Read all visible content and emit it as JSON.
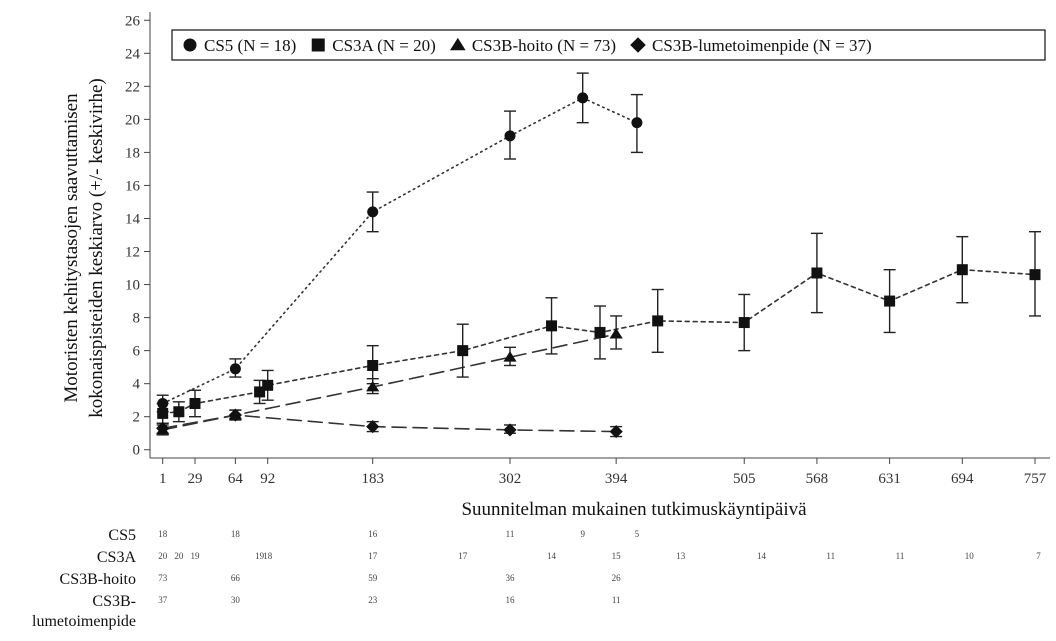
{
  "chart_data": {
    "type": "line",
    "title": "",
    "xlabel": "Suunnitelman mukainen tutkimuskäyntipäivä",
    "ylabel_line1": "Motoristen kehitystasojen saavuttamisen",
    "ylabel_line2": "kokonaispisteiden keskiarvo (+/- keskivirhe)",
    "xlim": [
      -10,
      770
    ],
    "ylim": [
      -0.5,
      26.5
    ],
    "x_ticks": [
      1,
      29,
      64,
      92,
      183,
      302,
      394,
      505,
      568,
      631,
      694,
      757
    ],
    "y_ticks": [
      0,
      2,
      4,
      6,
      8,
      10,
      12,
      14,
      16,
      18,
      20,
      22,
      24,
      26
    ],
    "grid": false,
    "legend_position": "top",
    "series": [
      {
        "name": "CS5 (N = 18)",
        "marker": "circle",
        "line_style": "dotted",
        "points": [
          {
            "x": 1,
            "y": 2.8,
            "lo": 2.3,
            "hi": 3.3
          },
          {
            "x": 64,
            "y": 4.9,
            "lo": 4.4,
            "hi": 5.5
          },
          {
            "x": 183,
            "y": 14.4,
            "lo": 13.2,
            "hi": 15.6
          },
          {
            "x": 302,
            "y": 19.0,
            "lo": 17.6,
            "hi": 20.5
          },
          {
            "x": 365,
            "y": 21.3,
            "lo": 19.8,
            "hi": 22.8
          },
          {
            "x": 412,
            "y": 19.8,
            "lo": 18.0,
            "hi": 21.5
          }
        ]
      },
      {
        "name": "CS3A (N = 20)",
        "marker": "square",
        "line_style": "short-dash",
        "points": [
          {
            "x": 1,
            "y": 2.2,
            "lo": 1.6,
            "hi": 2.8
          },
          {
            "x": 15,
            "y": 2.3,
            "lo": 1.7,
            "hi": 2.9
          },
          {
            "x": 29,
            "y": 2.8,
            "lo": 2.0,
            "hi": 3.6
          },
          {
            "x": 85,
            "y": 3.5,
            "lo": 2.8,
            "hi": 4.2
          },
          {
            "x": 92,
            "y": 3.9,
            "lo": 3.0,
            "hi": 4.8
          },
          {
            "x": 183,
            "y": 5.1,
            "lo": 4.0,
            "hi": 6.3
          },
          {
            "x": 261,
            "y": 6.0,
            "lo": 4.4,
            "hi": 7.6
          },
          {
            "x": 338,
            "y": 7.5,
            "lo": 5.8,
            "hi": 9.2
          },
          {
            "x": 380,
            "y": 7.1,
            "lo": 5.5,
            "hi": 8.7
          },
          {
            "x": 430,
            "y": 7.8,
            "lo": 5.9,
            "hi": 9.7
          },
          {
            "x": 505,
            "y": 7.7,
            "lo": 6.0,
            "hi": 9.4
          },
          {
            "x": 568,
            "y": 10.7,
            "lo": 8.3,
            "hi": 13.1
          },
          {
            "x": 631,
            "y": 9.0,
            "lo": 7.1,
            "hi": 10.9
          },
          {
            "x": 694,
            "y": 10.9,
            "lo": 8.9,
            "hi": 12.9
          },
          {
            "x": 757,
            "y": 10.6,
            "lo": 8.1,
            "hi": 13.2
          }
        ]
      },
      {
        "name": "CS3B-hoito (N = 73)",
        "marker": "triangle",
        "line_style": "long-dash",
        "points": [
          {
            "x": 1,
            "y": 1.2,
            "lo": 0.9,
            "hi": 1.5
          },
          {
            "x": 64,
            "y": 2.1,
            "lo": 1.9,
            "hi": 2.4
          },
          {
            "x": 183,
            "y": 3.8,
            "lo": 3.4,
            "hi": 4.3
          },
          {
            "x": 302,
            "y": 5.6,
            "lo": 5.1,
            "hi": 6.2
          },
          {
            "x": 394,
            "y": 7.0,
            "lo": 6.1,
            "hi": 8.1
          }
        ]
      },
      {
        "name": "CS3B-lumetoimenpide (N = 37)",
        "marker": "diamond",
        "line_style": "long-dash",
        "points": [
          {
            "x": 1,
            "y": 1.3,
            "lo": 1.0,
            "hi": 1.6
          },
          {
            "x": 64,
            "y": 2.1,
            "lo": 1.8,
            "hi": 2.4
          },
          {
            "x": 183,
            "y": 1.4,
            "lo": 1.1,
            "hi": 1.7
          },
          {
            "x": 302,
            "y": 1.2,
            "lo": 1.0,
            "hi": 1.5
          },
          {
            "x": 394,
            "y": 1.1,
            "lo": 0.8,
            "hi": 1.4
          }
        ]
      }
    ],
    "at_risk_table": {
      "rows": [
        {
          "label": "CS5",
          "counts": [
            {
              "x": 1,
              "n": "18"
            },
            {
              "x": 64,
              "n": "18"
            },
            {
              "x": 183,
              "n": "16"
            },
            {
              "x": 302,
              "n": "11"
            },
            {
              "x": 365,
              "n": "9"
            },
            {
              "x": 412,
              "n": "5"
            }
          ]
        },
        {
          "label": "CS3A",
          "counts": [
            {
              "x": 1,
              "n": "20"
            },
            {
              "x": 15,
              "n": "20"
            },
            {
              "x": 29,
              "n": "19"
            },
            {
              "x": 85,
              "n": "19"
            },
            {
              "x": 92,
              "n": "18"
            },
            {
              "x": 183,
              "n": "17"
            },
            {
              "x": 261,
              "n": "17"
            },
            {
              "x": 338,
              "n": "14"
            },
            {
              "x": 394,
              "n": "15"
            },
            {
              "x": 450,
              "n": "13"
            },
            {
              "x": 520,
              "n": "14"
            },
            {
              "x": 580,
              "n": "11"
            },
            {
              "x": 640,
              "n": "11"
            },
            {
              "x": 700,
              "n": "10"
            },
            {
              "x": 760,
              "n": "7"
            }
          ]
        },
        {
          "label": "CS3B-hoito",
          "counts": [
            {
              "x": 1,
              "n": "73"
            },
            {
              "x": 64,
              "n": "66"
            },
            {
              "x": 183,
              "n": "59"
            },
            {
              "x": 302,
              "n": "36"
            },
            {
              "x": 394,
              "n": "26"
            }
          ]
        },
        {
          "label": "CS3B-\nlumetoimenpide",
          "counts": [
            {
              "x": 1,
              "n": "37"
            },
            {
              "x": 64,
              "n": "30"
            },
            {
              "x": 183,
              "n": "23"
            },
            {
              "x": 302,
              "n": "16"
            },
            {
              "x": 394,
              "n": "11"
            }
          ]
        }
      ]
    }
  }
}
